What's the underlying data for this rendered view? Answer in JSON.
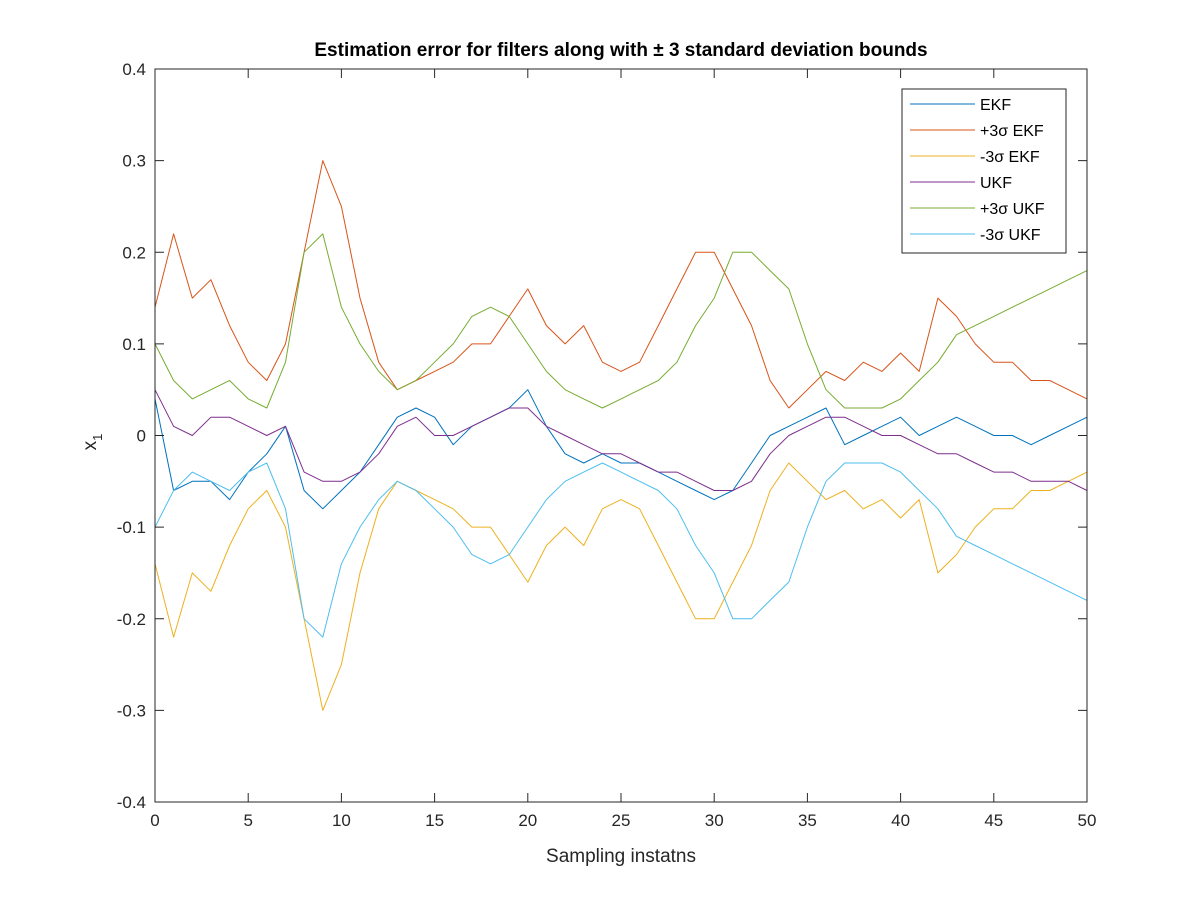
{
  "chart_data": {
    "type": "line",
    "title": "Estimation error for filters along with ± 3 standard deviation bounds",
    "xlabel": "Sampling instatns",
    "ylabel": "x",
    "ylabel_subscript": "1",
    "xlim": [
      0,
      50
    ],
    "ylim": [
      -0.4,
      0.4
    ],
    "x_ticks": [
      0,
      5,
      10,
      15,
      20,
      25,
      30,
      35,
      40,
      45,
      50
    ],
    "x_tick_labels": [
      "0",
      "5",
      "10",
      "15",
      "20",
      "25",
      "30",
      "35",
      "40",
      "45",
      "50"
    ],
    "y_ticks": [
      -0.4,
      -0.3,
      -0.2,
      -0.1,
      0,
      0.1,
      0.2,
      0.3,
      0.4
    ],
    "y_tick_labels": [
      "-0.4",
      "-0.3",
      "-0.2",
      "-0.1",
      "0",
      "0.1",
      "0.2",
      "0.3",
      "0.4"
    ],
    "grid": false,
    "legend_position": "top-right",
    "x": [
      0,
      1,
      2,
      3,
      4,
      5,
      6,
      7,
      8,
      9,
      10,
      11,
      12,
      13,
      14,
      15,
      16,
      17,
      18,
      19,
      20,
      21,
      22,
      23,
      24,
      25,
      26,
      27,
      28,
      29,
      30,
      31,
      32,
      33,
      34,
      35,
      36,
      37,
      38,
      39,
      40,
      41,
      42,
      43,
      44,
      45,
      46,
      47,
      48,
      49,
      50
    ],
    "series": [
      {
        "name": "EKF",
        "color": "#0072BD",
        "values": [
          0.04,
          -0.06,
          -0.05,
          -0.05,
          -0.07,
          -0.04,
          -0.02,
          0.01,
          -0.06,
          -0.08,
          -0.06,
          -0.04,
          -0.01,
          0.02,
          0.03,
          0.02,
          -0.01,
          0.01,
          0.02,
          0.03,
          0.05,
          0.01,
          -0.02,
          -0.03,
          -0.02,
          -0.03,
          -0.03,
          -0.04,
          -0.05,
          -0.06,
          -0.07,
          -0.06,
          -0.03,
          0.0,
          0.01,
          0.02,
          0.03,
          -0.01,
          0.0,
          0.01,
          0.02,
          0.0,
          0.01,
          0.02,
          0.01,
          0.0,
          0.0,
          -0.01,
          0.0,
          0.01,
          0.02
        ]
      },
      {
        "name": "+3σ EKF",
        "color": "#D95319",
        "values": [
          0.14,
          0.22,
          0.15,
          0.17,
          0.12,
          0.08,
          0.06,
          0.1,
          0.2,
          0.3,
          0.25,
          0.15,
          0.08,
          0.05,
          0.06,
          0.07,
          0.08,
          0.1,
          0.1,
          0.13,
          0.16,
          0.12,
          0.1,
          0.12,
          0.08,
          0.07,
          0.08,
          0.12,
          0.16,
          0.2,
          0.2,
          0.16,
          0.12,
          0.06,
          0.03,
          0.05,
          0.07,
          0.06,
          0.08,
          0.07,
          0.09,
          0.07,
          0.15,
          0.13,
          0.1,
          0.08,
          0.08,
          0.06,
          0.06,
          0.05,
          0.04
        ]
      },
      {
        "name": "-3σ EKF",
        "color": "#EDB120",
        "values": [
          -0.14,
          -0.22,
          -0.15,
          -0.17,
          -0.12,
          -0.08,
          -0.06,
          -0.1,
          -0.2,
          -0.3,
          -0.25,
          -0.15,
          -0.08,
          -0.05,
          -0.06,
          -0.07,
          -0.08,
          -0.1,
          -0.1,
          -0.13,
          -0.16,
          -0.12,
          -0.1,
          -0.12,
          -0.08,
          -0.07,
          -0.08,
          -0.12,
          -0.16,
          -0.2,
          -0.2,
          -0.16,
          -0.12,
          -0.06,
          -0.03,
          -0.05,
          -0.07,
          -0.06,
          -0.08,
          -0.07,
          -0.09,
          -0.07,
          -0.15,
          -0.13,
          -0.1,
          -0.08,
          -0.08,
          -0.06,
          -0.06,
          -0.05,
          -0.04
        ]
      },
      {
        "name": "UKF",
        "color": "#7E2F8E",
        "values": [
          0.05,
          0.01,
          0.0,
          0.02,
          0.02,
          0.01,
          0.0,
          0.01,
          -0.04,
          -0.05,
          -0.05,
          -0.04,
          -0.02,
          0.01,
          0.02,
          0.0,
          0.0,
          0.01,
          0.02,
          0.03,
          0.03,
          0.01,
          0.0,
          -0.01,
          -0.02,
          -0.02,
          -0.03,
          -0.04,
          -0.04,
          -0.05,
          -0.06,
          -0.06,
          -0.05,
          -0.02,
          0.0,
          0.01,
          0.02,
          0.02,
          0.01,
          0.0,
          0.0,
          -0.01,
          -0.02,
          -0.02,
          -0.03,
          -0.04,
          -0.04,
          -0.05,
          -0.05,
          -0.05,
          -0.06
        ]
      },
      {
        "name": "+3σ UKF",
        "color": "#77AC30",
        "values": [
          0.1,
          0.06,
          0.04,
          0.05,
          0.06,
          0.04,
          0.03,
          0.08,
          0.2,
          0.22,
          0.14,
          0.1,
          0.07,
          0.05,
          0.06,
          0.08,
          0.1,
          0.13,
          0.14,
          0.13,
          0.1,
          0.07,
          0.05,
          0.04,
          0.03,
          0.04,
          0.05,
          0.06,
          0.08,
          0.12,
          0.15,
          0.2,
          0.2,
          0.18,
          0.16,
          0.1,
          0.05,
          0.03,
          0.03,
          0.03,
          0.04,
          0.06,
          0.08,
          0.11,
          0.12,
          0.13,
          0.14,
          0.15,
          0.16,
          0.17,
          0.18
        ]
      },
      {
        "name": "-3σ UKF",
        "color": "#4DBEEE",
        "values": [
          -0.1,
          -0.06,
          -0.04,
          -0.05,
          -0.06,
          -0.04,
          -0.03,
          -0.08,
          -0.2,
          -0.22,
          -0.14,
          -0.1,
          -0.07,
          -0.05,
          -0.06,
          -0.08,
          -0.1,
          -0.13,
          -0.14,
          -0.13,
          -0.1,
          -0.07,
          -0.05,
          -0.04,
          -0.03,
          -0.04,
          -0.05,
          -0.06,
          -0.08,
          -0.12,
          -0.15,
          -0.2,
          -0.2,
          -0.18,
          -0.16,
          -0.1,
          -0.05,
          -0.03,
          -0.03,
          -0.03,
          -0.04,
          -0.06,
          -0.08,
          -0.11,
          -0.12,
          -0.13,
          -0.14,
          -0.15,
          -0.16,
          -0.17,
          -0.18
        ]
      }
    ]
  }
}
